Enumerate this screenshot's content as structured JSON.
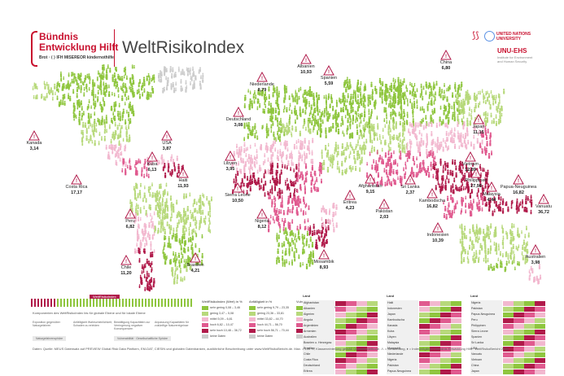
{
  "header": {
    "logo_line1": "Bündnis",
    "logo_line2": "Entwicklung Hilft",
    "logo_members": "Brot  ·  ⟨ ⟩  IFH  MISEREOR  kindernothilfe",
    "title": "WeltRisikoIndex",
    "un_line1": "UNITED NATIONS",
    "un_line2": "UNIVERSITY",
    "unu_ehs": "UNU-EHS",
    "unu_sub": "Institute for Environment and Human Security"
  },
  "colors": {
    "very_low": "#8fc63f",
    "low": "#b7d97b",
    "medium": "#f2b8cf",
    "high": "#e05a8f",
    "very_high": "#b01a4a",
    "no_data": "#cccccc"
  },
  "callouts": [
    {
      "name": "Kanada",
      "value": "3,14"
    },
    {
      "name": "USA",
      "value": "3,87"
    },
    {
      "name": "Kuba",
      "value": "6,13"
    },
    {
      "name": "Haiti",
      "value": "11,93"
    },
    {
      "name": "Costa Rica",
      "value": "17,17"
    },
    {
      "name": "Peru",
      "value": "6,82"
    },
    {
      "name": "Chile",
      "value": "11,20"
    },
    {
      "name": "Brasilien",
      "value": "4,21"
    },
    {
      "name": "Niederlande",
      "value": "8,79"
    },
    {
      "name": "Deutschland",
      "value": "3,08"
    },
    {
      "name": "Albanien",
      "value": "10,93"
    },
    {
      "name": "Spanien",
      "value": "5,59"
    },
    {
      "name": "Libyen",
      "value": "3,95"
    },
    {
      "name": "Sierra Leone",
      "value": "10,50"
    },
    {
      "name": "Nigeria",
      "value": "8,12"
    },
    {
      "name": "Mosambik",
      "value": "8,93"
    },
    {
      "name": "Eritrea",
      "value": "4,23"
    },
    {
      "name": "Afghanistan",
      "value": "9,15"
    },
    {
      "name": "Pakistan",
      "value": "2,03"
    },
    {
      "name": "China",
      "value": "6,80"
    },
    {
      "name": "Japan",
      "value": "11,15"
    },
    {
      "name": "Vietnam",
      "value": "12,89"
    },
    {
      "name": "Philippinen",
      "value": "27,98"
    },
    {
      "name": "Sri Lanka",
      "value": "2,37"
    },
    {
      "name": "Kambodscha",
      "value": "16,82"
    },
    {
      "name": "Indonesien",
      "value": "10,39"
    },
    {
      "name": "Malaysia",
      "value": "4,44"
    },
    {
      "name": "Papua-Neuguinea",
      "value": "16,82"
    },
    {
      "name": "Vanuatu",
      "value": "36,72"
    },
    {
      "name": "Australien",
      "value": "3,98"
    }
  ],
  "legend": {
    "index_label": "WeltRisikoIndex",
    "components_title": "Komponenten des WeltRisikoIndex bis für globale Ebene und für lokale Ebene",
    "cat1": "Exposition gegenüber Naturgefahren",
    "cat2": "Anfälligkeit Wahrscheinlichkeit, Schaden zu erleiden",
    "cat3": "Bewältigung Kapazitäten zur Verringerung negativer Konsequenzen",
    "cat4": "Anpassung Kapazitäten für zukünftige Naturereignisse",
    "box1": "Naturgefahrensphäre",
    "box2": "Vulnerabilität · Gesellschaftliche Sphäre",
    "classes": [
      "sehr gering",
      "gering",
      "mittel",
      "hoch",
      "sehr hoch",
      "keine Daten"
    ]
  },
  "class_tables": [
    {
      "title": "WeltRisikoIndex (Wert) in %",
      "ranges": [
        "0,08 – 3,46",
        "3,47 – 5,08",
        "5,09 – 6,81",
        "6,82 – 10,47",
        "10,48 – 36,72",
        ""
      ]
    },
    {
      "title": "Anfälligkeit in %",
      "ranges": [
        "9,79 – 23,35",
        "23,36 – 33,81",
        "33,82 – 44,70",
        "44,71 – 56,70",
        "56,71 – 70,44",
        ""
      ]
    },
    {
      "title": "Vulnerabilität in %",
      "ranges": [
        "20,77 – 33,99",
        "34,00 – 42,93",
        "42,94 – 52,39",
        "52,40 – 62,29",
        "62,30 – 76,78",
        ""
      ]
    }
  ],
  "rank_tables": [
    {
      "header": "Land",
      "rows": [
        "Afghanistan",
        "Albanien",
        "Algerien",
        "Angola",
        "Argentinien",
        "Armenien",
        "Australien",
        "Bosnien u. Herzegow.",
        "Brasilien",
        "Chile",
        "Costa Rica",
        "Deutschland",
        "Eritrea"
      ]
    },
    {
      "header": "Land",
      "rows": [
        "Haiti",
        "Indonesien",
        "Japan",
        "Kambodscha",
        "Kanada",
        "Kuba",
        "Libyen",
        "Malaysia",
        "Mosambik",
        "Niederlande",
        "Nigeria",
        "Pakistan",
        "Papua-Neuguinea"
      ]
    },
    {
      "header": "Land",
      "rows": [
        "Nigeria",
        "Pakistan",
        "Papua-Neuguinea",
        "Peru",
        "Philippinen",
        "Sierra Leone",
        "Spanien",
        "Sri Lanka",
        "USA",
        "Vanuatu",
        "Vietnam",
        "China",
        "Japan"
      ]
    }
  ],
  "footer": "Daten: Quelle: MEUS Datensatz auf PREVIEW Global Risk Data Platform, EM-DAT, CIESIN und globalen Datenbanken, ausführliche Beschreibung unter www.WeltRisikoBericht.de. Max. = 100 %, Klasseneinteilung gemäß Quantile-Methode. ⚠ = Gefährdung, ♦ = Indexmitglied   © Bündnis Entwicklung Hilft · WeltRisikoBericht 2016"
}
